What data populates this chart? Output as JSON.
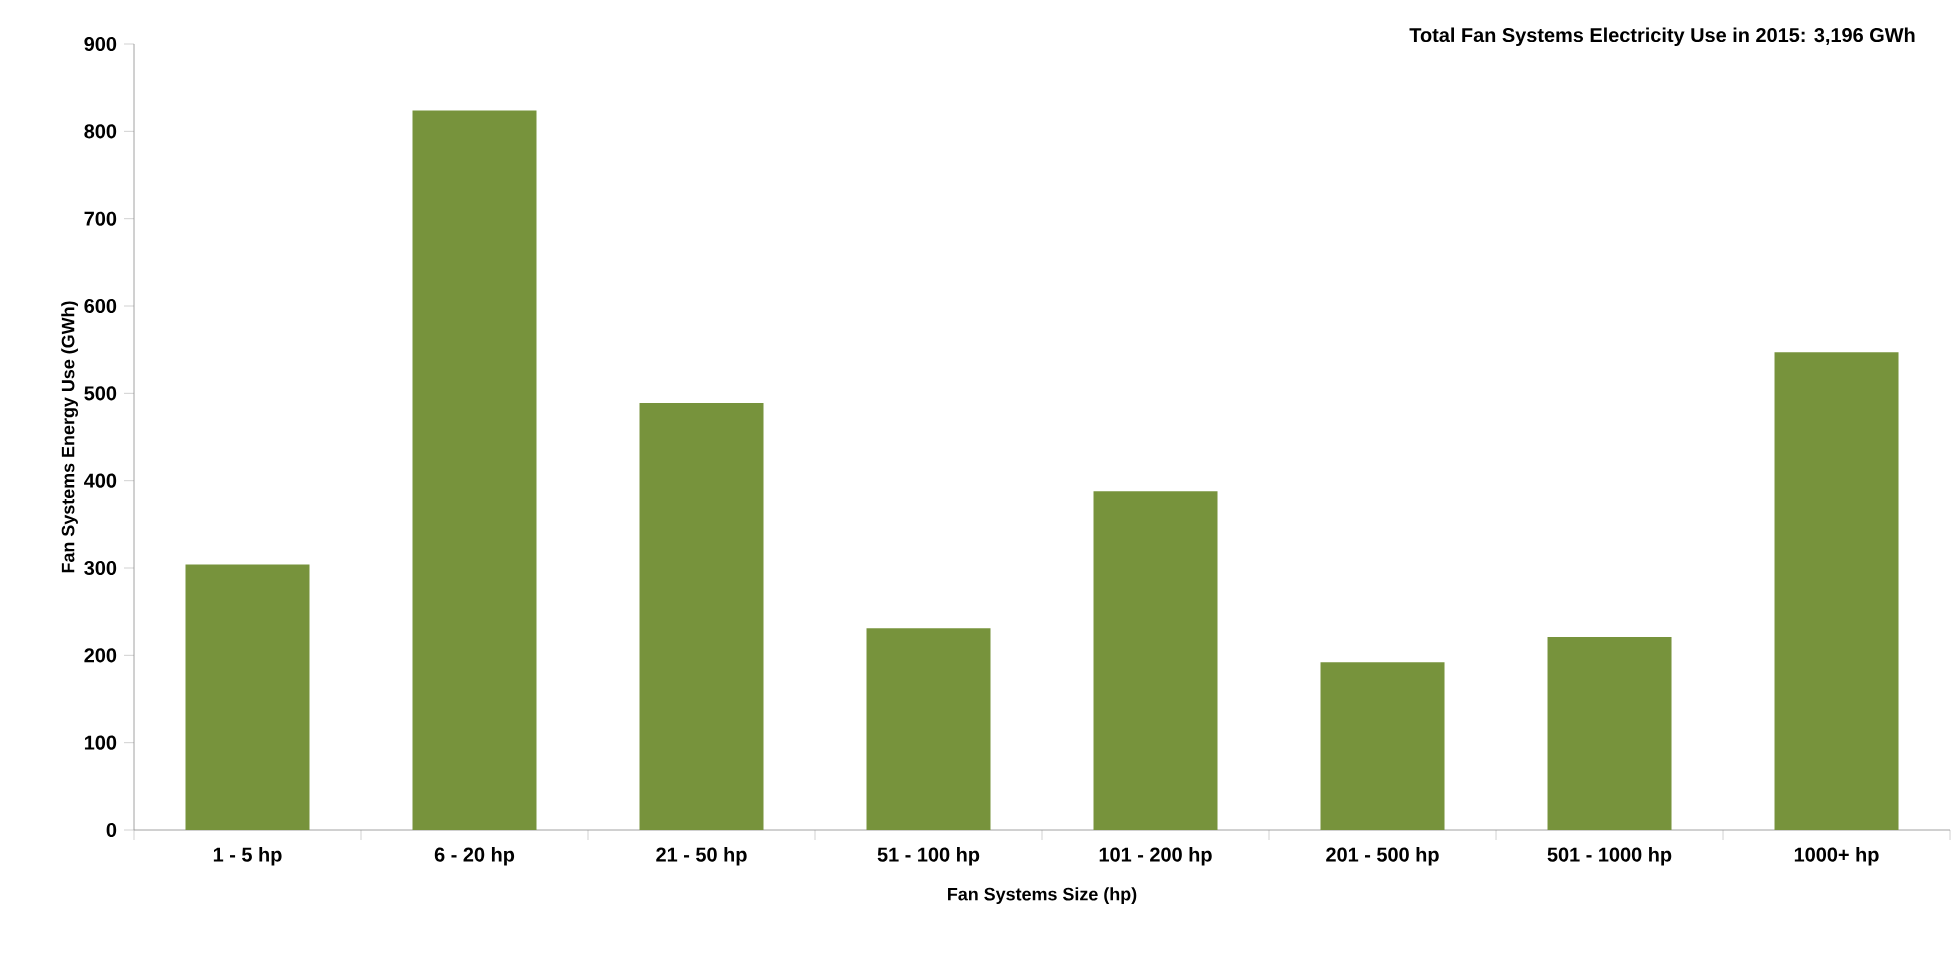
{
  "chart_data": {
    "type": "bar",
    "title": "Total Fan Systems Electricity Use in 2015: 3,196 GWh",
    "xlabel": "Fan Systems Size (hp)",
    "ylabel": "Fan Systems Energy Use (GWh)",
    "categories": [
      "1 - 5 hp",
      "6 - 20 hp",
      "21 - 50 hp",
      "51 - 100 hp",
      "101 - 200 hp",
      "201 - 500 hp",
      "501 - 1000 hp",
      "1000+ hp"
    ],
    "values": [
      304,
      824,
      489,
      231,
      388,
      192,
      221,
      547
    ],
    "color": "#77933c",
    "ylim": [
      0,
      900
    ],
    "yticks": [
      0,
      100,
      200,
      300,
      400,
      500,
      600,
      700,
      800,
      900
    ],
    "grid": false
  }
}
